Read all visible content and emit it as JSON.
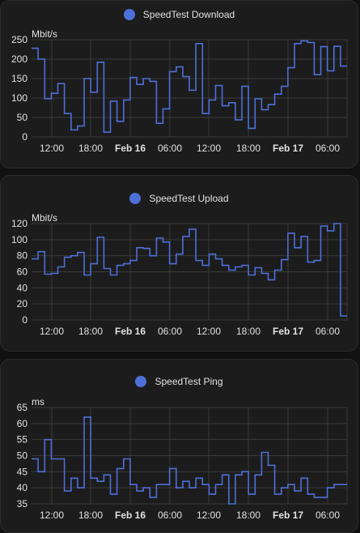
{
  "colors": {
    "series": "#4d6fd8",
    "background": "#111111",
    "card": "#1c1c1c",
    "grid": "#3a3a3a"
  },
  "x_ticks": [
    "12:00",
    "18:00",
    "Feb 16",
    "06:00",
    "12:00",
    "18:00",
    "Feb 17",
    "06:00"
  ],
  "x_ticks_bold": [
    false,
    false,
    true,
    false,
    false,
    false,
    true,
    false
  ],
  "cards": [
    {
      "legend": "SpeedTest Download",
      "unit": "Mbit/s",
      "y_ticks": [
        "250",
        "200",
        "150",
        "100",
        "50",
        "0"
      ]
    },
    {
      "legend": "SpeedTest Upload",
      "unit": "Mbit/s",
      "y_ticks": [
        "120",
        "100",
        "80",
        "60",
        "40",
        "20",
        "0"
      ]
    },
    {
      "legend": "SpeedTest Ping",
      "unit": "ms",
      "y_ticks": [
        "65",
        "60",
        "55",
        "50",
        "45",
        "40",
        "35"
      ]
    }
  ],
  "chart_data": [
    {
      "type": "line",
      "title": "",
      "ylabel": "Mbit/s",
      "ylim": [
        0,
        250
      ],
      "x_ticks": [
        "12:00",
        "18:00",
        "Feb 16",
        "06:00",
        "12:00",
        "18:00",
        "Feb 17",
        "06:00"
      ],
      "step": true,
      "series": [
        {
          "name": "SpeedTest Download",
          "values": [
            228,
            200,
            98,
            112,
            137,
            60,
            18,
            28,
            150,
            115,
            192,
            12,
            92,
            40,
            95,
            153,
            135,
            150,
            143,
            35,
            72,
            168,
            180,
            155,
            120,
            240,
            60,
            95,
            132,
            80,
            88,
            44,
            130,
            22,
            98,
            70,
            83,
            110,
            130,
            178,
            240,
            247,
            243,
            160,
            232,
            170,
            233,
            182
          ]
        }
      ]
    },
    {
      "type": "line",
      "title": "",
      "ylabel": "Mbit/s",
      "ylim": [
        0,
        120
      ],
      "x_ticks": [
        "12:00",
        "18:00",
        "Feb 16",
        "06:00",
        "12:00",
        "18:00",
        "Feb 17",
        "06:00"
      ],
      "step": true,
      "series": [
        {
          "name": "SpeedTest Upload",
          "values": [
            76,
            85,
            57,
            58,
            66,
            78,
            80,
            84,
            56,
            70,
            103,
            64,
            56,
            68,
            70,
            74,
            90,
            89,
            80,
            102,
            97,
            70,
            82,
            104,
            113,
            74,
            68,
            82,
            76,
            68,
            62,
            66,
            68,
            56,
            65,
            58,
            50,
            62,
            75,
            108,
            90,
            104,
            72,
            74,
            117,
            111,
            120,
            5
          ]
        }
      ]
    },
    {
      "type": "line",
      "title": "",
      "ylabel": "ms",
      "ylim": [
        35,
        65
      ],
      "x_ticks": [
        "12:00",
        "18:00",
        "Feb 16",
        "06:00",
        "12:00",
        "18:00",
        "Feb 17",
        "06:00"
      ],
      "step": true,
      "series": [
        {
          "name": "SpeedTest Ping",
          "values": [
            49,
            45,
            55,
            49,
            49,
            39,
            43,
            40,
            62,
            43,
            42,
            44,
            38,
            46,
            49,
            41,
            39,
            40,
            37,
            41,
            41,
            46,
            40,
            42,
            40,
            43,
            41,
            38,
            41,
            44,
            35,
            44,
            45,
            38,
            44,
            51,
            47,
            38,
            40,
            41,
            39,
            43,
            38,
            37,
            37,
            40,
            41,
            41
          ]
        }
      ]
    }
  ]
}
